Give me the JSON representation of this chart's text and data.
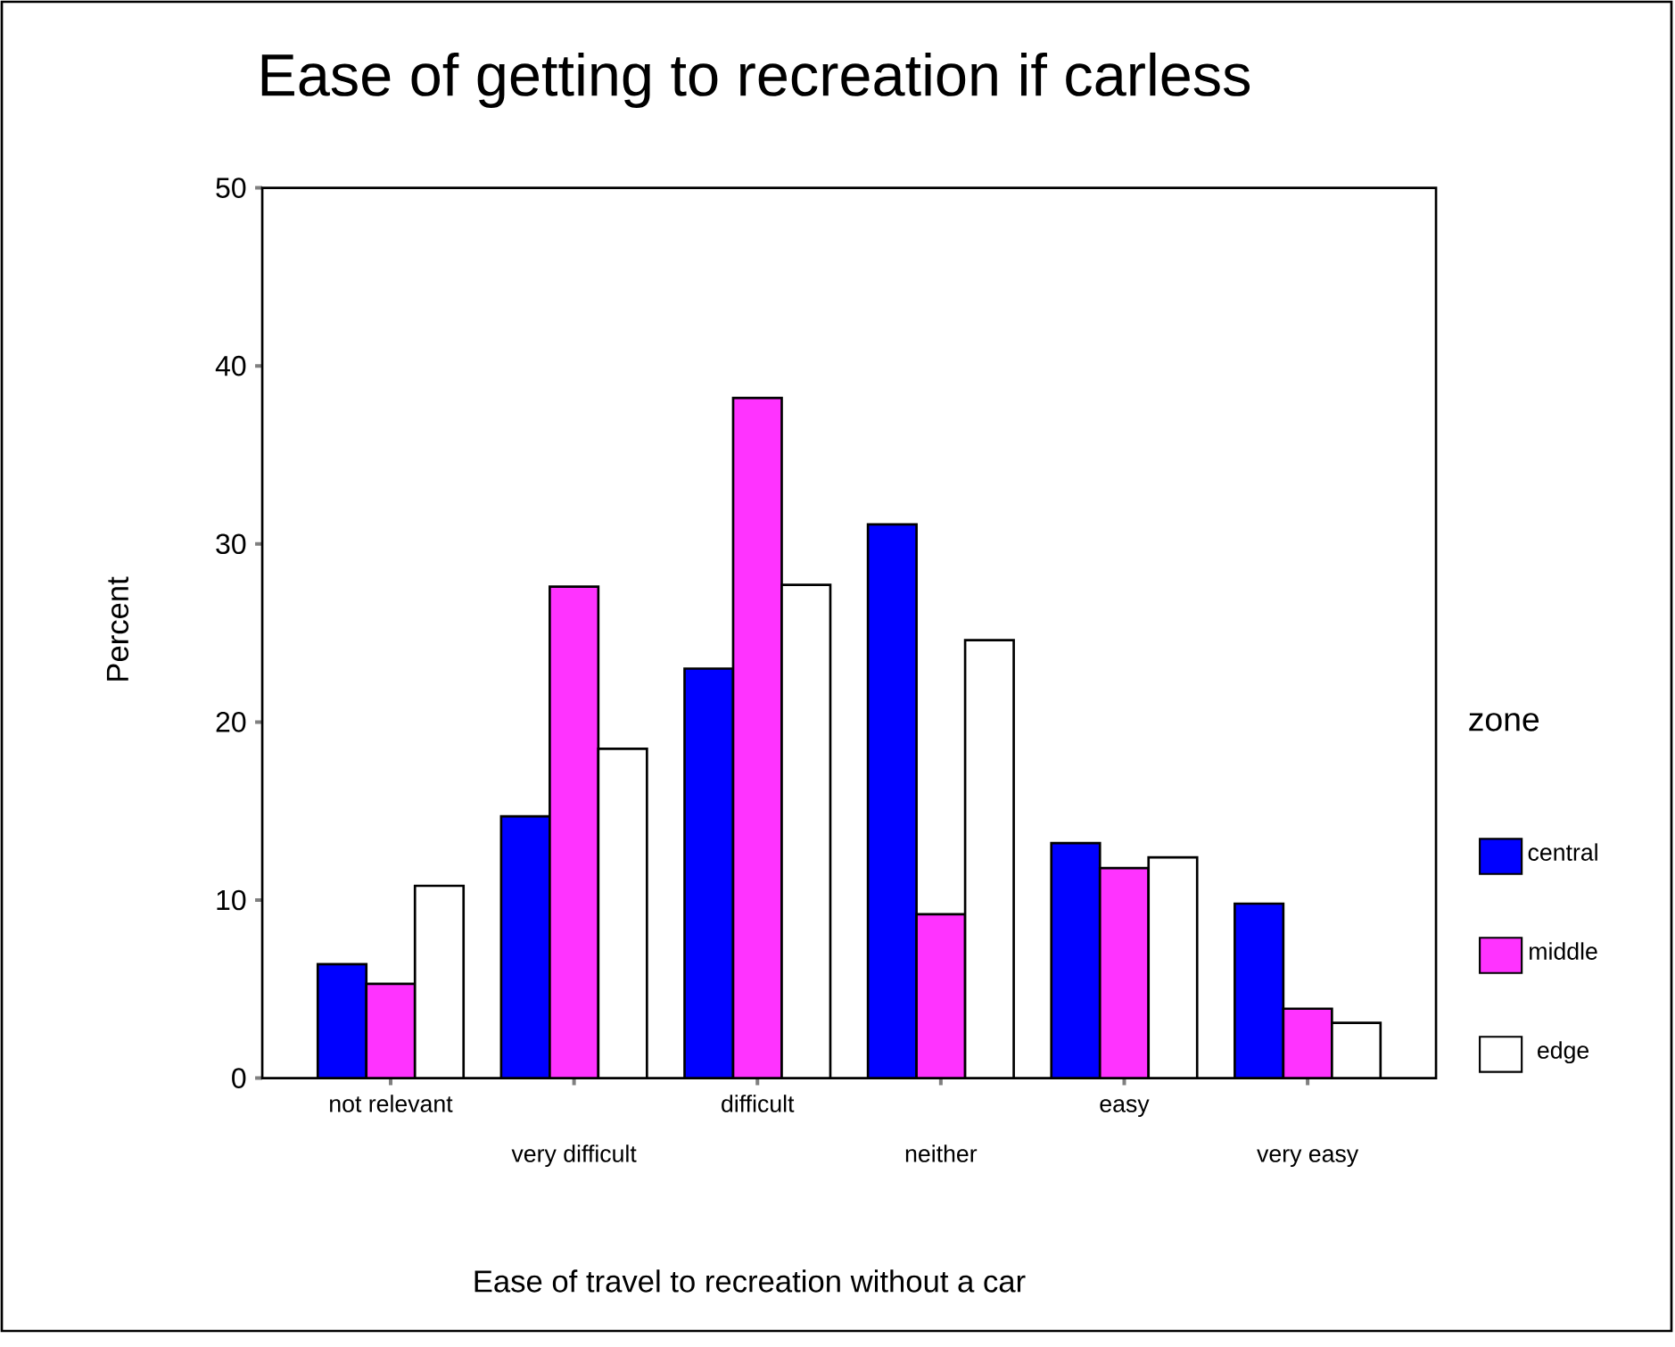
{
  "chart_data": {
    "type": "bar",
    "title": "Ease of getting to recreation if carless",
    "xlabel": "Ease of travel to recreation without a car",
    "ylabel": "Percent",
    "legend_title": "zone",
    "categories": [
      "not relevant",
      "very difficult",
      "difficult",
      "neither",
      "easy",
      "very easy"
    ],
    "series": [
      {
        "name": "central",
        "color": "#0000ff",
        "values": [
          6.4,
          14.7,
          23.0,
          31.1,
          13.2,
          9.8
        ]
      },
      {
        "name": "middle",
        "color": "#ff33ff",
        "values": [
          5.3,
          27.6,
          38.2,
          9.2,
          11.8,
          3.9
        ]
      },
      {
        "name": "edge",
        "color": "#ffffff",
        "values": [
          10.8,
          18.5,
          27.7,
          24.6,
          12.4,
          3.1
        ]
      }
    ],
    "ylim": [
      0,
      50
    ],
    "yticks": [
      0,
      10,
      20,
      30,
      40,
      50
    ],
    "grid": false,
    "legend": "right"
  }
}
